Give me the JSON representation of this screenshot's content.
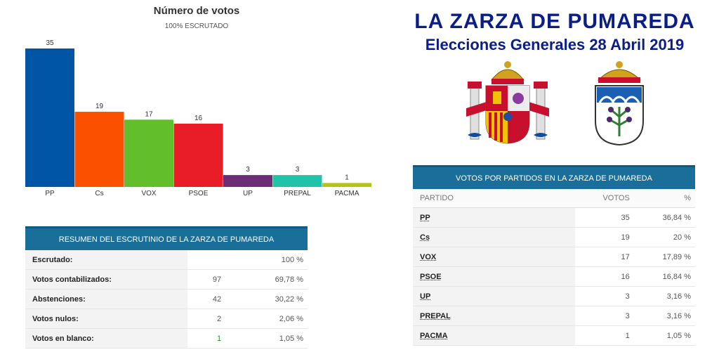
{
  "header": {
    "title": "LA  ZARZA DE PUMAREDA",
    "subtitle": "Elecciones Generales 28 Abril 2019"
  },
  "chart_data": {
    "type": "bar",
    "title": "Número de votos",
    "subtitle": "100% ESCRUTADO",
    "categories": [
      "PP",
      "Cs",
      "VOX",
      "PSOE",
      "UP",
      "PREPAL",
      "PACMA"
    ],
    "values": [
      35,
      19,
      17,
      16,
      3,
      3,
      1
    ],
    "colors": [
      "#0055a7",
      "#fa5000",
      "#63be2c",
      "#e81d27",
      "#6b2d74",
      "#20c3a7",
      "#b5c219"
    ],
    "ylim": [
      0,
      35
    ],
    "grid": false,
    "legend": "none"
  },
  "summary": {
    "heading": "RESUMEN DEL ESCRUTINIO DE LA ZARZA DE PUMAREDA",
    "rows": [
      {
        "label": "Escrutado:",
        "count": "",
        "pct": "100 %"
      },
      {
        "label": "Votos contabilizados:",
        "count": "97",
        "pct": "69,78 %"
      },
      {
        "label": "Abstenciones:",
        "count": "42",
        "pct": "30,22 %"
      },
      {
        "label": "Votos nulos:",
        "count": "2",
        "pct": "2,06 %"
      },
      {
        "label": "Votos en blanco:",
        "count": "1",
        "pct": "1,05 %"
      }
    ]
  },
  "parties": {
    "heading": "VOTOS POR PARTIDOS EN LA ZARZA DE PUMAREDA",
    "col_party": "PARTIDO",
    "col_votes": "VOTOS",
    "col_pct": "%",
    "rows": [
      {
        "party": "PP",
        "votes": "35",
        "pct": "36,84 %"
      },
      {
        "party": "Cs",
        "votes": "19",
        "pct": "20 %"
      },
      {
        "party": "VOX",
        "votes": "17",
        "pct": "17,89 %"
      },
      {
        "party": "PSOE",
        "votes": "16",
        "pct": "16,84 %"
      },
      {
        "party": "UP",
        "votes": "3",
        "pct": "3,16 %"
      },
      {
        "party": "PREPAL",
        "votes": "3",
        "pct": "3,16 %"
      },
      {
        "party": "PACMA",
        "votes": "1",
        "pct": "1,05 %"
      }
    ]
  },
  "emblems": {
    "left": "spain-coat-of-arms-icon",
    "right": "municipal-coat-of-arms-icon"
  }
}
